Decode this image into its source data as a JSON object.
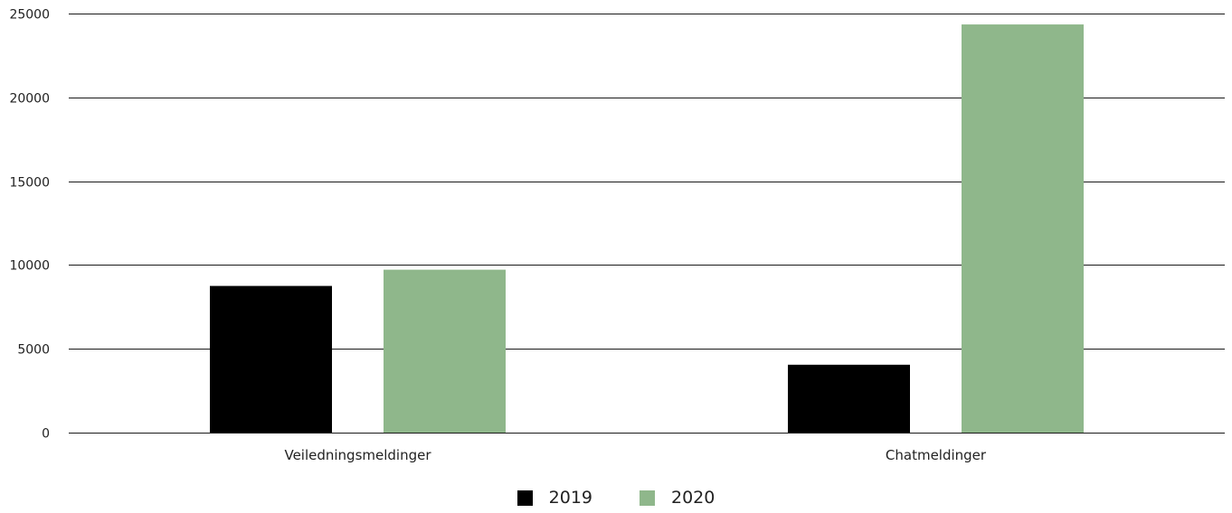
{
  "chart_data": {
    "type": "bar",
    "categories": [
      "Veiledningsmeldinger",
      "Chatmeldinger"
    ],
    "series": [
      {
        "name": "2019",
        "color": "#000000",
        "values": [
          8750,
          4050
        ]
      },
      {
        "name": "2020",
        "color": "#8fb78b",
        "values": [
          9720,
          24350
        ]
      }
    ],
    "ylim": [
      0,
      25000
    ],
    "yticks": [
      0,
      5000,
      10000,
      15000,
      20000,
      25000
    ],
    "ytick_labels": [
      "0",
      "5000",
      "10000",
      "15000",
      "20000",
      "25000"
    ],
    "grid": true,
    "legend_position": "bottom-center"
  }
}
